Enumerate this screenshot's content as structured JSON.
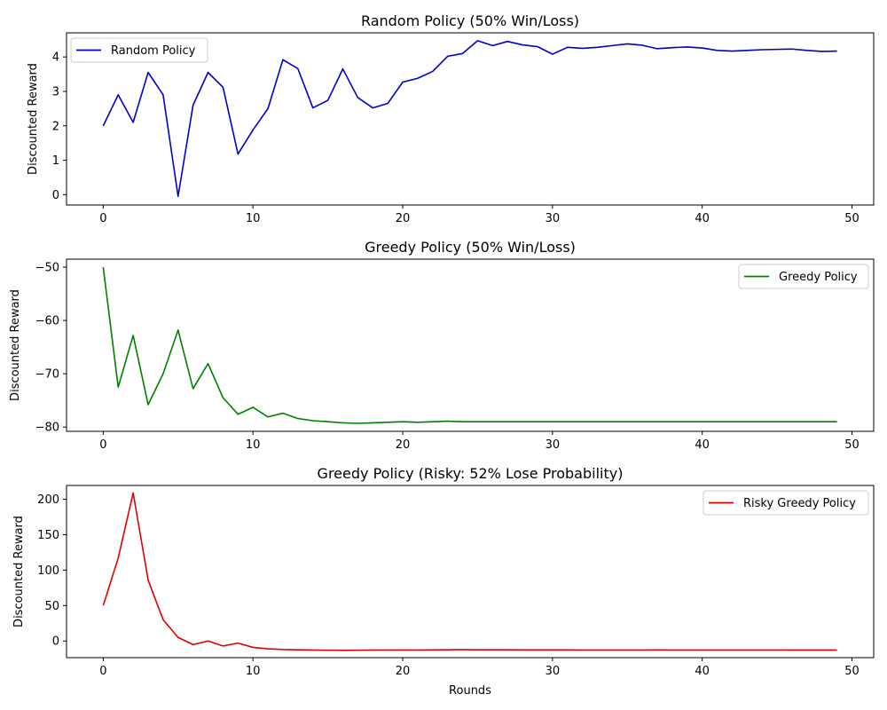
{
  "chart_data": [
    {
      "type": "line",
      "title": "Random Policy (50% Win/Loss)",
      "xlabel": "",
      "ylabel": "Discounted Reward",
      "xlim": [
        -2.45,
        51.45
      ],
      "ylim": [
        -0.3,
        4.7
      ],
      "xticks": [
        0,
        10,
        20,
        30,
        40,
        50
      ],
      "xtick_labels": [
        "0",
        "10",
        "20",
        "30",
        "40",
        "50"
      ],
      "yticks": [
        0,
        1,
        2,
        3,
        4
      ],
      "ytick_labels": [
        "0",
        "1",
        "2",
        "3",
        "4"
      ],
      "legend": "top-left",
      "series": [
        {
          "name": "Random Policy",
          "color": "#0000cc",
          "x": [
            0,
            1,
            2,
            3,
            4,
            5,
            6,
            7,
            8,
            9,
            10,
            11,
            12,
            13,
            14,
            15,
            16,
            17,
            18,
            19,
            20,
            21,
            22,
            23,
            24,
            25,
            26,
            27,
            28,
            29,
            30,
            31,
            32,
            33,
            34,
            35,
            36,
            37,
            38,
            39,
            40,
            41,
            42,
            43,
            44,
            45,
            46,
            47,
            48,
            49
          ],
          "values": [
            2.0,
            2.9,
            2.1,
            3.55,
            2.9,
            -0.05,
            2.6,
            3.55,
            3.12,
            1.18,
            1.88,
            2.5,
            3.92,
            3.66,
            2.52,
            2.74,
            3.65,
            2.82,
            2.52,
            2.65,
            3.27,
            3.38,
            3.58,
            4.02,
            4.1,
            4.47,
            4.33,
            4.45,
            4.35,
            4.3,
            4.08,
            4.28,
            4.25,
            4.28,
            4.33,
            4.38,
            4.34,
            4.24,
            4.27,
            4.29,
            4.26,
            4.19,
            4.17,
            4.19,
            4.21,
            4.22,
            4.23,
            4.19,
            4.16,
            4.17
          ]
        }
      ]
    },
    {
      "type": "line",
      "title": "Greedy Policy (50% Win/Loss)",
      "xlabel": "",
      "ylabel": "Discounted Reward",
      "xlim": [
        -2.45,
        51.45
      ],
      "ylim": [
        -80.8,
        -48.5
      ],
      "xticks": [
        0,
        10,
        20,
        30,
        40,
        50
      ],
      "xtick_labels": [
        "0",
        "10",
        "20",
        "30",
        "40",
        "50"
      ],
      "yticks": [
        -50,
        -60,
        -70,
        -80
      ],
      "ytick_labels": [
        "−50",
        "−60",
        "−70",
        "−80"
      ],
      "legend": "top-right",
      "series": [
        {
          "name": "Greedy Policy",
          "color": "#008000",
          "x": [
            0,
            1,
            2,
            3,
            4,
            5,
            6,
            7,
            8,
            9,
            10,
            11,
            12,
            13,
            14,
            15,
            16,
            17,
            18,
            19,
            20,
            21,
            22,
            23,
            24,
            25,
            26,
            27,
            28,
            29,
            30,
            31,
            32,
            33,
            34,
            35,
            36,
            37,
            38,
            39,
            40,
            41,
            42,
            43,
            44,
            45,
            46,
            47,
            48,
            49
          ],
          "values": [
            -50.0,
            -72.5,
            -62.8,
            -75.8,
            -70.0,
            -61.8,
            -72.8,
            -68.1,
            -74.5,
            -77.6,
            -76.3,
            -78.1,
            -77.4,
            -78.4,
            -78.8,
            -79.0,
            -79.2,
            -79.3,
            -79.2,
            -79.1,
            -79.0,
            -79.1,
            -79.0,
            -78.9,
            -79.0,
            -79.0,
            -79.0,
            -79.0,
            -79.0,
            -79.0,
            -79.0,
            -79.0,
            -79.0,
            -79.0,
            -79.0,
            -79.0,
            -79.0,
            -79.0,
            -79.0,
            -79.0,
            -79.0,
            -79.0,
            -79.0,
            -79.0,
            -79.0,
            -79.0,
            -79.0,
            -79.0,
            -79.0,
            -79.0
          ]
        }
      ]
    },
    {
      "type": "line",
      "title": "Greedy Policy (Risky: 52% Lose Probability)",
      "xlabel": "Rounds",
      "ylabel": "Discounted Reward",
      "xlim": [
        -2.45,
        51.45
      ],
      "ylim": [
        -23.5,
        219.5
      ],
      "xticks": [
        0,
        10,
        20,
        30,
        40,
        50
      ],
      "xtick_labels": [
        "0",
        "10",
        "20",
        "30",
        "40",
        "50"
      ],
      "yticks": [
        0,
        50,
        100,
        150,
        200
      ],
      "ytick_labels": [
        "0",
        "50",
        "100",
        "150",
        "200"
      ],
      "legend": "top-right",
      "series": [
        {
          "name": "Risky Greedy Policy",
          "color": "#dd0000",
          "x": [
            0,
            1,
            2,
            3,
            4,
            5,
            6,
            7,
            8,
            9,
            10,
            11,
            12,
            13,
            14,
            15,
            16,
            17,
            18,
            19,
            20,
            21,
            22,
            23,
            24,
            25,
            26,
            27,
            28,
            29,
            30,
            31,
            32,
            33,
            34,
            35,
            36,
            37,
            38,
            39,
            40,
            41,
            42,
            43,
            44,
            45,
            46,
            47,
            48,
            49
          ],
          "values": [
            50,
            117,
            209,
            86,
            30,
            5,
            -5,
            0,
            -7,
            -3,
            -9,
            -11,
            -12,
            -12.5,
            -12.8,
            -13,
            -13.2,
            -13,
            -12.8,
            -12.7,
            -12.8,
            -12.7,
            -12.6,
            -12.4,
            -12.2,
            -12.4,
            -12.5,
            -12.5,
            -12.6,
            -12.6,
            -12.6,
            -12.6,
            -12.7,
            -12.7,
            -12.7,
            -12.7,
            -12.7,
            -12.6,
            -12.7,
            -12.7,
            -12.7,
            -12.7,
            -12.7,
            -12.7,
            -12.7,
            -12.7,
            -12.8,
            -12.8,
            -12.8,
            -12.8
          ]
        }
      ]
    }
  ]
}
